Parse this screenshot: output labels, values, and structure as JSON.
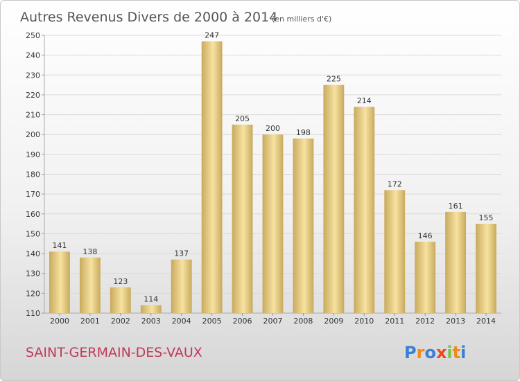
{
  "chart_data": {
    "type": "bar",
    "title": "Autres Revenus Divers de 2000 à 2014",
    "subtitle": "(en milliers d'€)",
    "categories": [
      "2000",
      "2001",
      "2002",
      "2003",
      "2004",
      "2005",
      "2006",
      "2007",
      "2008",
      "2009",
      "2010",
      "2011",
      "2012",
      "2013",
      "2014"
    ],
    "values": [
      141,
      138,
      123,
      114,
      137,
      247,
      205,
      200,
      198,
      225,
      214,
      172,
      146,
      161,
      155
    ],
    "ylim": [
      110,
      250
    ],
    "yticks": [
      110,
      120,
      130,
      140,
      150,
      160,
      170,
      180,
      190,
      200,
      210,
      220,
      230,
      240,
      250
    ],
    "grid": true,
    "colors": {
      "bar_light": "#f7e2a0",
      "bar_dark": "#c8aa5e"
    }
  },
  "footer": {
    "place_name": "SAINT-GERMAIN-DES-VAUX",
    "logo_letters": [
      "P",
      "r",
      "o",
      "x",
      "i",
      "t",
      "i"
    ],
    "logo_colors": [
      "#3a7fd5",
      "#f28a1a",
      "#3a7fd5",
      "#e84a1d",
      "#7ac143",
      "#f28a1a",
      "#3a7fd5"
    ]
  }
}
